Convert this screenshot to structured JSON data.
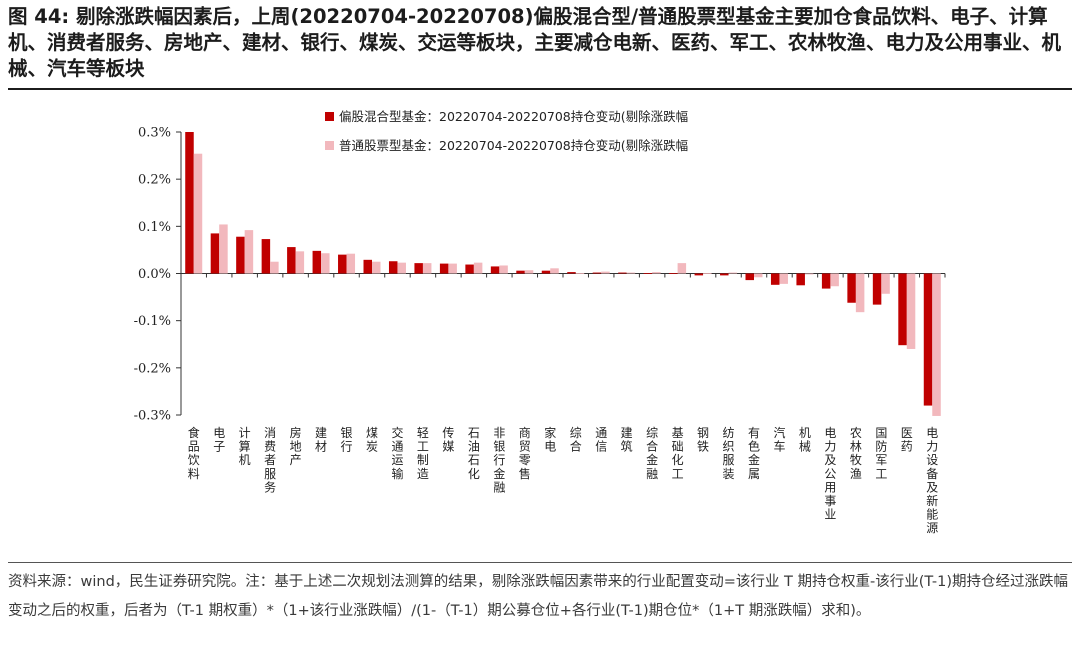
{
  "figure": {
    "title": "图 44: 剔除涨跌幅因素后，上周(20220704-20220708)偏股混合型/普通股票型基金主要加仓食品饮料、电子、计算机、消费者服务、房地产、建材、银行、煤炭、交运等板块，主要减仓电新、医药、军工、农林牧渔、电力及公用事业、机械、汽车等板块",
    "source_note": "资料来源：wind，民生证券研究院。注：基于上述二次规划法测算的结果，剔除涨跌幅因素带来的行业配置变动=该行业 T 期持仓权重-该行业(T-1)期持仓经过涨跌幅变动之后的权重，后者为（T-1 期权重）*（1+该行业涨跌幅）/(1-（T-1）期公募仓位+各行业(T-1)期仓位*（1+T 期涨跌幅）求和)。"
  },
  "colors": {
    "series1": "#c00000",
    "series2": "#f2b8bd"
  },
  "chart_data": {
    "type": "bar",
    "ylim": [
      -0.3,
      0.3
    ],
    "y_tick_labels": [
      "0.3%",
      "0.2%",
      "0.1%",
      "0.0%",
      "-0.1%",
      "-0.2%",
      "-0.3%"
    ],
    "y_ticks": [
      0.3,
      0.2,
      0.1,
      0.0,
      -0.1,
      -0.2,
      -0.3
    ],
    "legend_position": "top-center",
    "grid": false,
    "categories": [
      "食品饮料",
      "电子",
      "计算机",
      "消费者服务",
      "房地产",
      "建材",
      "银行",
      "煤炭",
      "交通运输",
      "轻工制造",
      "传媒",
      "石油石化",
      "非银行金融",
      "商贸零售",
      "家电",
      "综合",
      "通信",
      "建筑",
      "综合金融",
      "基础化工",
      "钢铁",
      "纺织服装",
      "有色金属",
      "汽车",
      "机械",
      "电力及公用事业",
      "农林牧渔",
      "国防军工",
      "医药",
      "电力设备及新能源"
    ],
    "series": [
      {
        "name": "偏股混合型基金：20220704-20220708持仓变动(剔除涨跌幅",
        "values": [
          0.3,
          0.085,
          0.078,
          0.073,
          0.056,
          0.048,
          0.04,
          0.029,
          0.026,
          0.022,
          0.021,
          0.019,
          0.015,
          0.006,
          0.006,
          0.003,
          0.002,
          0.002,
          0.001,
          0.001,
          -0.004,
          -0.004,
          -0.014,
          -0.024,
          -0.025,
          -0.032,
          -0.062,
          -0.066,
          -0.152,
          -0.28
        ]
      },
      {
        "name": "普通股票型基金：20220704-20220708持仓变动(剔除涨跌幅",
        "values": [
          0.254,
          0.104,
          0.092,
          0.025,
          0.047,
          0.043,
          0.042,
          0.025,
          0.023,
          0.022,
          0.021,
          0.023,
          0.017,
          0.007,
          0.011,
          0.001,
          0.004,
          0.002,
          0.003,
          0.022,
          0.001,
          0.002,
          -0.008,
          -0.022,
          -0.002,
          -0.027,
          -0.082,
          -0.043,
          -0.16,
          -0.302
        ]
      }
    ]
  }
}
